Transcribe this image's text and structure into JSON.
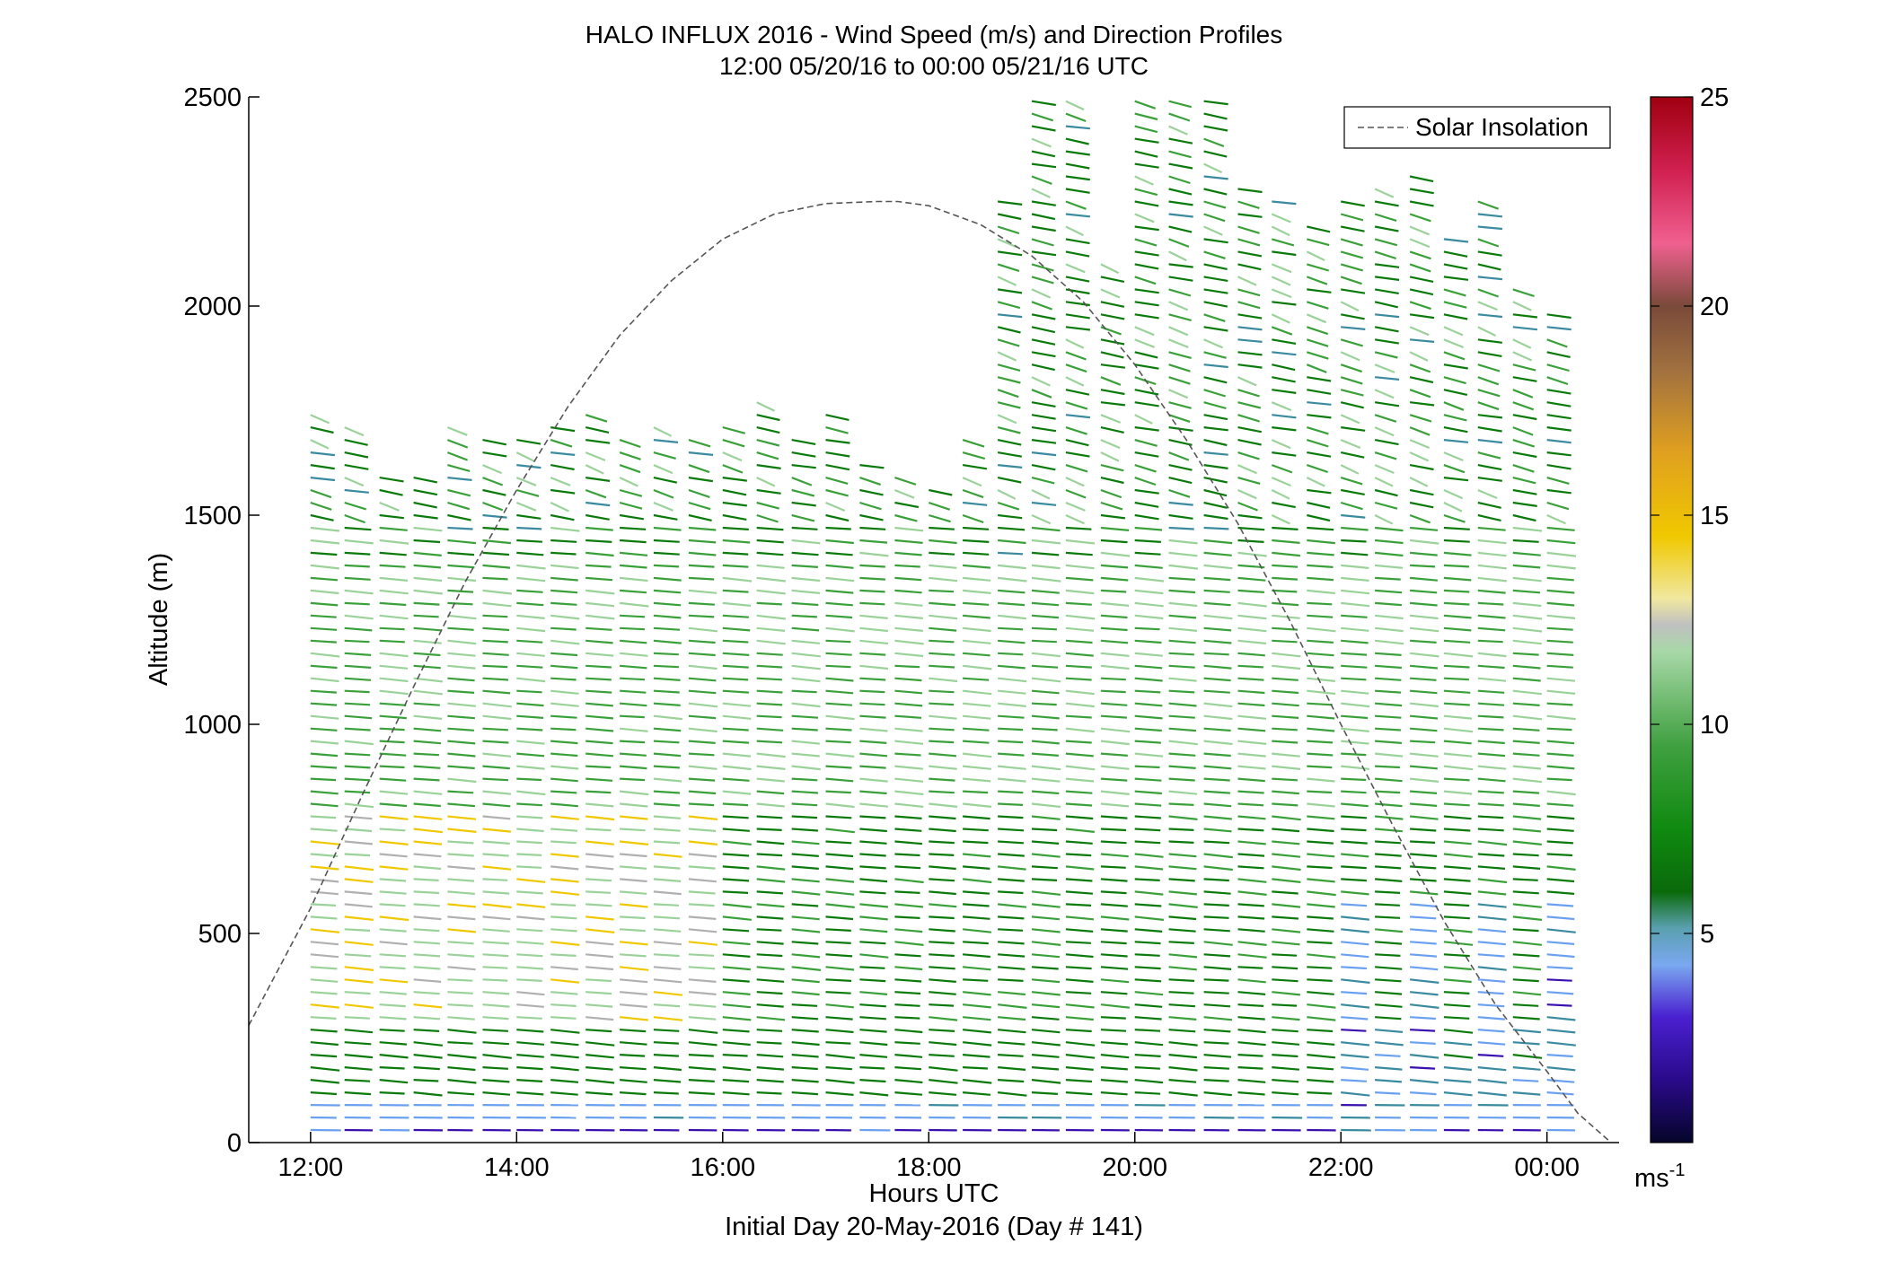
{
  "chart_data": {
    "type": "wind-barb-profile",
    "title": "HALO INFLUX 2016 - Wind Speed (m/s) and Direction Profiles",
    "subtitle": "12:00 05/20/16 to 00:00 05/21/16  UTC",
    "xlabel": "Hours UTC",
    "xlabel2": "Initial Day 20-May-2016 (Day # 141)",
    "ylabel": "Altitude (m)",
    "x_ticks": [
      "12:00",
      "14:00",
      "16:00",
      "18:00",
      "20:00",
      "22:00",
      "00:00"
    ],
    "x_tick_hours": [
      12,
      14,
      16,
      18,
      20,
      22,
      24
    ],
    "xlim": [
      11.4,
      24.7
    ],
    "y_ticks": [
      "0",
      "500",
      "1000",
      "1500",
      "2000",
      "2500"
    ],
    "y_tick_values": [
      0,
      500,
      1000,
      1500,
      2000,
      2500
    ],
    "ylim": [
      0,
      2500
    ],
    "legend": {
      "label": "Solar Insolation",
      "placement": "top-right"
    },
    "colorbar": {
      "ticks": [
        "5",
        "10",
        "15",
        "20",
        "25"
      ],
      "tick_values": [
        5,
        10,
        15,
        20,
        25
      ],
      "range": [
        0,
        25
      ],
      "unit_base": "ms",
      "unit_exp": "-1"
    },
    "solar_insolation": {
      "x_hours": [
        11.4,
        12.0,
        12.5,
        13.0,
        13.5,
        14.0,
        14.5,
        15.0,
        15.5,
        16.0,
        16.5,
        17.0,
        17.5,
        17.7,
        18.0,
        18.5,
        19.0,
        19.5,
        20.0,
        20.5,
        21.0,
        21.5,
        22.0,
        22.5,
        23.0,
        23.5,
        24.0,
        24.3,
        24.6
      ],
      "y_m": [
        280,
        560,
        830,
        1090,
        1340,
        1560,
        1760,
        1930,
        2060,
        2160,
        2220,
        2245,
        2250,
        2250,
        2240,
        2195,
        2120,
        2010,
        1860,
        1680,
        1480,
        1250,
        1000,
        760,
        530,
        330,
        170,
        70,
        5
      ]
    },
    "profiles": {
      "time_step_hours": 0.333,
      "altitude_step_m": 30,
      "note_columns": [
        {
          "t": 12.0,
          "top": 1750
        },
        {
          "t": 12.33,
          "top": 1730
        },
        {
          "t": 12.67,
          "top": 1610
        },
        {
          "t": 13.0,
          "top": 1600
        },
        {
          "t": 13.33,
          "top": 1710
        },
        {
          "t": 13.67,
          "top": 1700
        },
        {
          "t": 14.0,
          "top": 1680
        },
        {
          "t": 14.33,
          "top": 1720
        },
        {
          "t": 14.67,
          "top": 1740
        },
        {
          "t": 15.0,
          "top": 1700
        },
        {
          "t": 15.33,
          "top": 1720
        },
        {
          "t": 15.67,
          "top": 1700
        },
        {
          "t": 16.0,
          "top": 1720
        },
        {
          "t": 16.33,
          "top": 1790
        },
        {
          "t": 16.67,
          "top": 1700
        },
        {
          "t": 17.0,
          "top": 1740
        },
        {
          "t": 17.33,
          "top": 1640
        },
        {
          "t": 17.67,
          "top": 1590
        },
        {
          "t": 18.0,
          "top": 1560
        },
        {
          "t": 18.33,
          "top": 1700
        },
        {
          "t": 18.67,
          "top": 2250
        },
        {
          "t": 19.0,
          "top": 2500
        },
        {
          "t": 19.33,
          "top": 2500
        },
        {
          "t": 19.67,
          "top": 2100
        },
        {
          "t": 20.0,
          "top": 2500
        },
        {
          "t": 20.33,
          "top": 2500
        },
        {
          "t": 20.67,
          "top": 2500
        },
        {
          "t": 21.0,
          "top": 2280
        },
        {
          "t": 21.33,
          "top": 2270
        },
        {
          "t": 21.67,
          "top": 2200
        },
        {
          "t": 22.0,
          "top": 2270
        },
        {
          "t": 22.33,
          "top": 2280
        },
        {
          "t": 22.67,
          "top": 2320
        },
        {
          "t": 23.0,
          "top": 2170
        },
        {
          "t": 23.33,
          "top": 2270
        },
        {
          "t": 23.67,
          "top": 2050
        },
        {
          "t": 24.0,
          "top": 1990
        }
      ]
    }
  },
  "colors": {
    "low_speed": "#3a10b0",
    "light_blue": "#6aa0f0",
    "teal": "#3a8aa0",
    "dark_green": "#0a7a0a",
    "mid_green": "#3aa03a",
    "light_green": "#9ad29a",
    "gray": "#b0b0b0",
    "yellow": "#f0c800",
    "orange": "#e8a020",
    "brown": "#8a5a3a",
    "pink": "#f06090",
    "red": "#b00020"
  }
}
